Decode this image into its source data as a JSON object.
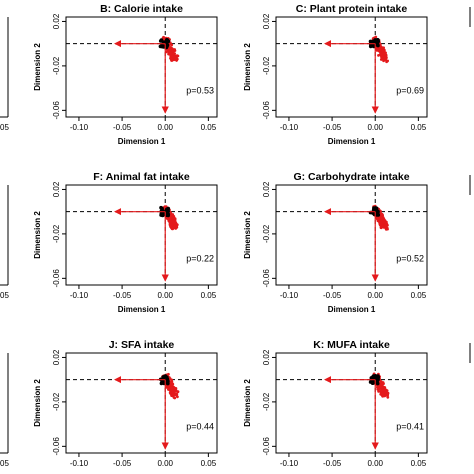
{
  "figure": {
    "x_tick_labels": [
      "-0.10",
      "-0.05",
      "0.00",
      "0.05"
    ],
    "y_tick_labels": [
      "0.02",
      "-0.02",
      "-0.06"
    ],
    "cut_tick_label": "05",
    "xlabel": "Dimension 1",
    "ylabel": "Dimension 2",
    "colors": {
      "points_red": "#e41a1c",
      "points_black": "#000000",
      "arrows": "#e41a1c",
      "axes": "#000000"
    }
  },
  "chart_data": [
    {
      "type": "scatter",
      "title": "B: Calorie intake",
      "p_label": "p=0.53",
      "xlabel": "Dimension 1",
      "ylabel": "Dimension 2",
      "xlim": [
        -0.115,
        0.06
      ],
      "ylim": [
        -0.066,
        0.024
      ],
      "xticks": [
        -0.1,
        -0.05,
        0.0,
        0.05
      ],
      "yticks": [
        0.02,
        -0.02,
        -0.06
      ],
      "arrows": [
        {
          "x": -0.058,
          "y": 0.0
        },
        {
          "x": 0.0,
          "y": -0.062
        }
      ],
      "dashed_lines": {
        "x": 0.0,
        "y": 0.0
      }
    },
    {
      "type": "scatter",
      "title": "C: Plant protein intake",
      "p_label": "p=0.69",
      "xlabel": "Dimension 1",
      "ylabel": "Dimension 2",
      "xlim": [
        -0.115,
        0.06
      ],
      "ylim": [
        -0.066,
        0.024
      ],
      "xticks": [
        -0.1,
        -0.05,
        0.0,
        0.05
      ],
      "yticks": [
        0.02,
        -0.02,
        -0.06
      ],
      "arrows": [
        {
          "x": -0.058,
          "y": 0.0
        },
        {
          "x": 0.0,
          "y": -0.062
        }
      ],
      "dashed_lines": {
        "x": 0.0,
        "y": 0.0
      }
    },
    {
      "type": "scatter",
      "title": "F: Animal fat intake",
      "p_label": "p=0.22",
      "xlabel": "Dimension 1",
      "ylabel": "Dimension 2",
      "xlim": [
        -0.115,
        0.06
      ],
      "ylim": [
        -0.066,
        0.024
      ],
      "xticks": [
        -0.1,
        -0.05,
        0.0,
        0.05
      ],
      "yticks": [
        0.02,
        -0.02,
        -0.06
      ],
      "arrows": [
        {
          "x": -0.058,
          "y": 0.0
        },
        {
          "x": 0.0,
          "y": -0.062
        }
      ],
      "dashed_lines": {
        "x": 0.0,
        "y": 0.0
      }
    },
    {
      "type": "scatter",
      "title": "G: Carbohydrate intake",
      "p_label": "p=0.52",
      "xlabel": "Dimension 1",
      "ylabel": "Dimension 2",
      "xlim": [
        -0.115,
        0.06
      ],
      "ylim": [
        -0.066,
        0.024
      ],
      "xticks": [
        -0.1,
        -0.05,
        0.0,
        0.05
      ],
      "yticks": [
        0.02,
        -0.02,
        -0.06
      ],
      "arrows": [
        {
          "x": -0.058,
          "y": 0.0
        },
        {
          "x": 0.0,
          "y": -0.062
        }
      ],
      "dashed_lines": {
        "x": 0.0,
        "y": 0.0
      }
    },
    {
      "type": "scatter",
      "title": "J: SFA intake",
      "p_label": "p=0.44",
      "xlabel": "Dimension 1",
      "ylabel": "Dimension 2",
      "xlim": [
        -0.115,
        0.06
      ],
      "ylim": [
        -0.066,
        0.024
      ],
      "xticks": [
        -0.1,
        -0.05,
        0.0,
        0.05
      ],
      "yticks": [
        0.02,
        -0.02,
        -0.06
      ],
      "arrows": [
        {
          "x": -0.058,
          "y": 0.0
        },
        {
          "x": 0.0,
          "y": -0.062
        }
      ],
      "dashed_lines": {
        "x": 0.0,
        "y": 0.0
      }
    },
    {
      "type": "scatter",
      "title": "K: MUFA intake",
      "p_label": "p=0.41",
      "xlabel": "Dimension 1",
      "ylabel": "Dimension 2",
      "xlim": [
        -0.115,
        0.06
      ],
      "ylim": [
        -0.066,
        0.024
      ],
      "xticks": [
        -0.1,
        -0.05,
        0.0,
        0.05
      ],
      "yticks": [
        0.02,
        -0.02,
        -0.06
      ],
      "arrows": [
        {
          "x": -0.058,
          "y": 0.0
        },
        {
          "x": 0.0,
          "y": -0.062
        }
      ],
      "dashed_lines": {
        "x": 0.0,
        "y": 0.0
      }
    }
  ]
}
